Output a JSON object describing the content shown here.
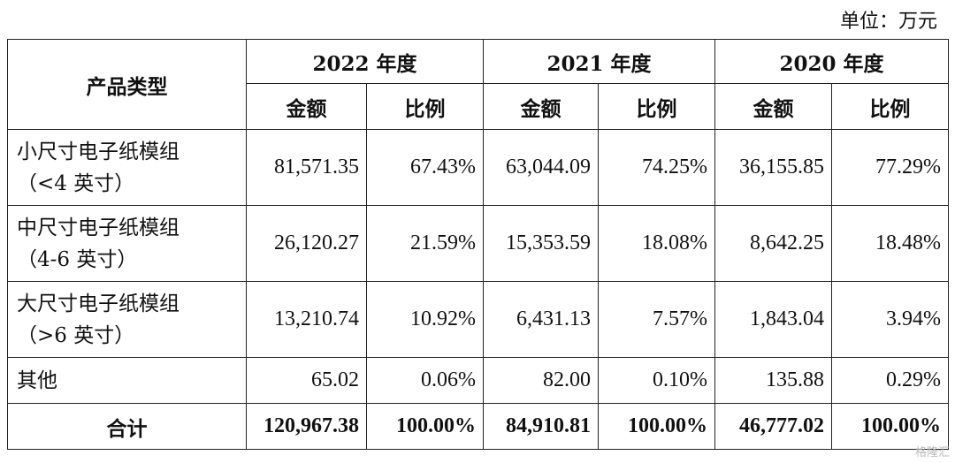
{
  "unit": "单位：万元",
  "header": {
    "product_type": "产品类型",
    "years": [
      "2022 年度",
      "2021 年度",
      "2020 年度"
    ],
    "amount": "金额",
    "ratio": "比例"
  },
  "rows": [
    {
      "line1": "小尺寸电子纸模组",
      "line2": "（<4 英寸）",
      "values": [
        "81,571.35",
        "67.43%",
        "63,044.09",
        "74.25%",
        "36,155.85",
        "77.29%"
      ]
    },
    {
      "line1": "中尺寸电子纸模组",
      "line2": "（4-6 英寸）",
      "values": [
        "26,120.27",
        "21.59%",
        "15,353.59",
        "18.08%",
        "8,642.25",
        "18.48%"
      ]
    },
    {
      "line1": "大尺寸电子纸模组",
      "line2": "（>6 英寸）",
      "values": [
        "13,210.74",
        "10.92%",
        "6,431.13",
        "7.57%",
        "1,843.04",
        "3.94%"
      ]
    },
    {
      "line1": "其他",
      "line2": "",
      "values": [
        "65.02",
        "0.06%",
        "82.00",
        "0.10%",
        "135.88",
        "0.29%"
      ]
    }
  ],
  "total": {
    "label": "合计",
    "values": [
      "120,967.38",
      "100.00%",
      "84,910.81",
      "100.00%",
      "46,777.02",
      "100.00%"
    ]
  },
  "watermark": "格隆汇"
}
